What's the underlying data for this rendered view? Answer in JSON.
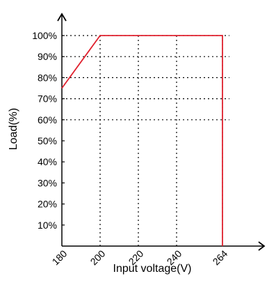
{
  "chart_data": {
    "type": "line",
    "title": "",
    "xlabel": "Input voltage(V)",
    "ylabel": "Load(%)",
    "x_ticks": [
      {
        "value": 180,
        "label": "180"
      },
      {
        "value": 200,
        "label": "200"
      },
      {
        "value": 220,
        "label": "220"
      },
      {
        "value": 240,
        "label": "240"
      },
      {
        "value": 264,
        "label": "264"
      }
    ],
    "y_ticks": [
      {
        "value": 10,
        "label": "10%"
      },
      {
        "value": 20,
        "label": "20%"
      },
      {
        "value": 30,
        "label": "30%"
      },
      {
        "value": 40,
        "label": "40%"
      },
      {
        "value": 50,
        "label": "50%"
      },
      {
        "value": 60,
        "label": "60%"
      },
      {
        "value": 70,
        "label": "70%"
      },
      {
        "value": 80,
        "label": "80%"
      },
      {
        "value": 90,
        "label": "90%"
      },
      {
        "value": 100,
        "label": "100%"
      }
    ],
    "xlim": [
      180,
      264
    ],
    "ylim": [
      0,
      100
    ],
    "grid": "dotted",
    "grid_x": [
      200,
      220,
      240,
      264
    ],
    "grid_y": [
      60,
      70,
      80,
      90,
      100
    ],
    "series": [
      {
        "color": "#e0212e",
        "points": [
          {
            "x": 180,
            "y": 75
          },
          {
            "x": 200,
            "y": 100
          },
          {
            "x": 264,
            "y": 100
          },
          {
            "x": 264,
            "y": 0
          }
        ]
      }
    ],
    "axis_color": "#000000",
    "grid_color": "#000000"
  }
}
